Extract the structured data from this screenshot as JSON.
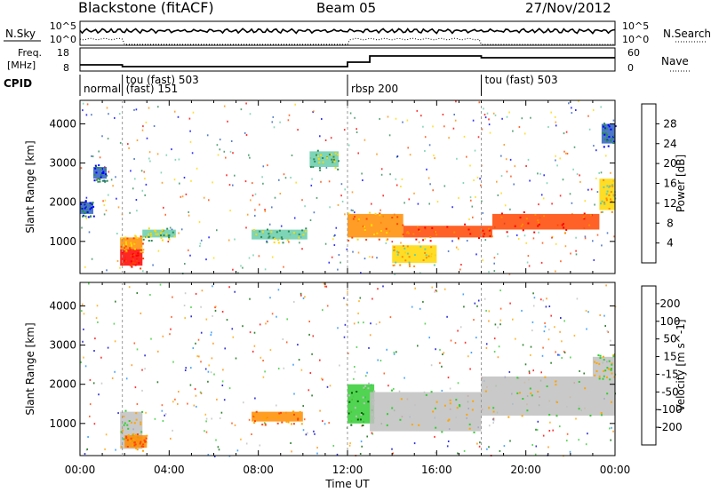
{
  "header": {
    "station": "Blackstone (fitACF)",
    "beam": "Beam 05",
    "date": "27/Nov/2012"
  },
  "panels": {
    "nsky_label": "N.Sky",
    "nsearch_label": "N.Search",
    "freq_label_top": "Freq.",
    "freq_label_bottom": "[MHz]",
    "nave_label": "Nave",
    "cpid_label": "CPID",
    "nsky_ticks": [
      "10^5",
      "10^0"
    ],
    "nsearch_ticks": [
      "10^5",
      "10^0"
    ],
    "freq_ticks": [
      "18",
      "8"
    ],
    "nave_ticks": [
      "60",
      "0"
    ]
  },
  "cpid": [
    {
      "name": "normal",
      "start_hour": 0
    },
    {
      "name": "tou (fast) 503",
      "start_hour": 1.9
    },
    {
      "name": "(fast) 151",
      "start_hour": 1.9
    },
    {
      "name": "rbsp 200",
      "start_hour": 12.0
    },
    {
      "name": "tou (fast) 503",
      "start_hour": 18.0
    }
  ],
  "chart_data": [
    {
      "type": "heatmap",
      "name": "Power",
      "ylabel": "Slant Range [km]",
      "ylim": [
        180,
        4600
      ],
      "yticks": [
        1000,
        2000,
        3000,
        4000
      ],
      "colorbar_label": "Power [dB]",
      "colorbar_ticks": [
        4,
        8,
        12,
        16,
        20,
        24,
        28
      ],
      "colors": [
        "#0000ff",
        "#2e5fbf",
        "#2e8b57",
        "#66cdaa",
        "#ffd700",
        "#ff8c00",
        "#ff4500",
        "#ff0000"
      ],
      "features": [
        {
          "t0": 0.0,
          "t1": 0.6,
          "r0": 1700,
          "r1": 2000,
          "level": 1
        },
        {
          "t0": 0.6,
          "t1": 1.2,
          "r0": 2600,
          "r1": 2900,
          "level": 1
        },
        {
          "t0": 1.8,
          "t1": 2.8,
          "r0": 380,
          "r1": 800,
          "level": 7
        },
        {
          "t0": 1.8,
          "t1": 2.8,
          "r0": 800,
          "r1": 1100,
          "level": 5
        },
        {
          "t0": 2.8,
          "t1": 4.3,
          "r0": 1100,
          "r1": 1300,
          "level": 3
        },
        {
          "t0": 7.7,
          "t1": 10.2,
          "r0": 1050,
          "r1": 1300,
          "level": 3
        },
        {
          "t0": 10.3,
          "t1": 11.6,
          "r0": 2900,
          "r1": 3300,
          "level": 3
        },
        {
          "t0": 12.0,
          "t1": 14.5,
          "r0": 1100,
          "r1": 1700,
          "level": 5
        },
        {
          "t0": 14.0,
          "t1": 16.0,
          "r0": 450,
          "r1": 900,
          "level": 4
        },
        {
          "t0": 14.5,
          "t1": 18.5,
          "r0": 1100,
          "r1": 1400,
          "level": 6
        },
        {
          "t0": 18.5,
          "t1": 23.3,
          "r0": 1300,
          "r1": 1700,
          "level": 6
        },
        {
          "t0": 23.3,
          "t1": 24.0,
          "r0": 1800,
          "r1": 2600,
          "level": 4
        },
        {
          "t0": 23.4,
          "t1": 24.0,
          "r0": 3500,
          "r1": 4000,
          "level": 1
        }
      ]
    },
    {
      "type": "heatmap",
      "name": "Velocity",
      "ylabel": "Slant Range [km]",
      "xlabel": "Time UT",
      "ylim": [
        180,
        4600
      ],
      "yticks": [
        1000,
        2000,
        3000,
        4000
      ],
      "xticks": [
        "00:00",
        "04:00",
        "08:00",
        "12:00",
        "16:00",
        "20:00",
        "00:00"
      ],
      "xlim_hours": [
        0,
        24
      ],
      "colorbar_label": "Velocity [m s^-1]",
      "colorbar_ticks": [
        200,
        100,
        50,
        15,
        -15,
        -50,
        -100,
        -200
      ],
      "colors": [
        "#0000cd",
        "#1e90ff",
        "#006400",
        "#32cd32",
        "#c0c0c0",
        "#ffa500",
        "#ff8c00",
        "#ff4500",
        "#ff0000"
      ],
      "features": [
        {
          "t0": 1.8,
          "t1": 2.8,
          "r0": 350,
          "r1": 1300,
          "level": 4
        },
        {
          "t0": 2.0,
          "t1": 3.0,
          "r0": 380,
          "r1": 700,
          "level": 6
        },
        {
          "t0": 7.7,
          "t1": 10.0,
          "r0": 1050,
          "r1": 1300,
          "level": 6
        },
        {
          "t0": 12.0,
          "t1": 13.2,
          "r0": 1000,
          "r1": 2000,
          "level": 3
        },
        {
          "t0": 13.0,
          "t1": 18.0,
          "r0": 800,
          "r1": 1800,
          "level": 4
        },
        {
          "t0": 18.0,
          "t1": 24.0,
          "r0": 1200,
          "r1": 2200,
          "level": 4
        },
        {
          "t0": 23.0,
          "t1": 24.0,
          "r0": 2200,
          "r1": 2700,
          "level": 4
        }
      ]
    }
  ]
}
